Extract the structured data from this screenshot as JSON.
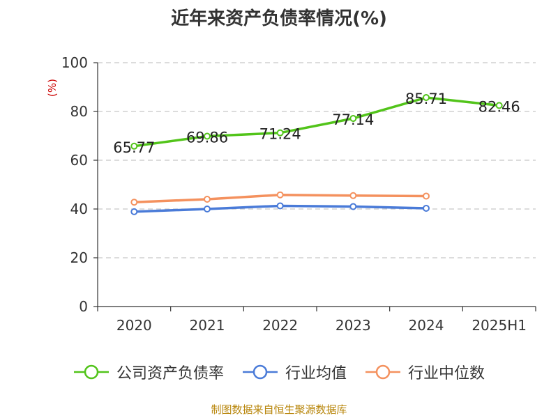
{
  "chart_data": {
    "type": "line",
    "title": "近年来资产负债率情况(%)",
    "ylabel": "(%)",
    "xlabel": "",
    "categories": [
      "2020",
      "2021",
      "2022",
      "2023",
      "2024",
      "2025H1"
    ],
    "ylim": [
      0,
      100
    ],
    "yticks": [
      0,
      20,
      40,
      60,
      80,
      100
    ],
    "grid": true,
    "legend_position": "bottom",
    "series": [
      {
        "name": "公司资产负债率",
        "color": "#52c41a",
        "values": [
          65.77,
          69.86,
          71.24,
          77.14,
          85.71,
          82.46
        ],
        "labels": [
          "65.77",
          "69.86",
          "71.24",
          "77.14",
          "85.71",
          "82.46"
        ]
      },
      {
        "name": "行业均值",
        "color": "#4a7bd8",
        "values": [
          38.9,
          40.0,
          41.3,
          41.0,
          40.3,
          null
        ]
      },
      {
        "name": "行业中位数",
        "color": "#f4915e",
        "values": [
          42.8,
          44.0,
          45.8,
          45.5,
          45.3,
          null
        ]
      }
    ]
  },
  "source_note": "制图数据来自恒生聚源数据库"
}
